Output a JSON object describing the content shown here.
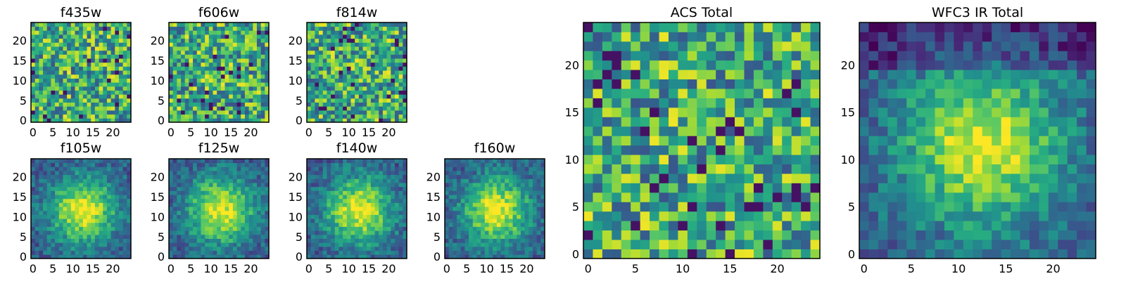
{
  "chart_data": [
    {
      "type": "heatmap",
      "title": "f435w",
      "grid_size": 25,
      "xticks": [
        "0",
        "5",
        "10",
        "15",
        "20"
      ],
      "yticks": [
        "0",
        "5",
        "10",
        "15",
        "20"
      ],
      "xlim": [
        0,
        24
      ],
      "ylim": [
        0,
        24
      ],
      "pattern": "noise",
      "colormap": "viridis"
    },
    {
      "type": "heatmap",
      "title": "f606w",
      "grid_size": 25,
      "xticks": [
        "0",
        "5",
        "10",
        "15",
        "20"
      ],
      "yticks": [
        "0",
        "5",
        "10",
        "15",
        "20"
      ],
      "xlim": [
        0,
        24
      ],
      "ylim": [
        0,
        24
      ],
      "pattern": "noise",
      "colormap": "viridis"
    },
    {
      "type": "heatmap",
      "title": "f814w",
      "grid_size": 25,
      "xticks": [
        "0",
        "5",
        "10",
        "15",
        "20"
      ],
      "yticks": [
        "0",
        "5",
        "10",
        "15",
        "20"
      ],
      "xlim": [
        0,
        24
      ],
      "ylim": [
        0,
        24
      ],
      "pattern": "noise",
      "colormap": "viridis"
    },
    {
      "type": "heatmap",
      "title": "f105w",
      "grid_size": 25,
      "xticks": [
        "0",
        "5",
        "10",
        "15",
        "20"
      ],
      "yticks": [
        "0",
        "5",
        "10",
        "15",
        "20"
      ],
      "xlim": [
        0,
        24
      ],
      "ylim": [
        0,
        24
      ],
      "pattern": "central-source",
      "colormap": "viridis"
    },
    {
      "type": "heatmap",
      "title": "f125w",
      "grid_size": 25,
      "xticks": [
        "0",
        "5",
        "10",
        "15",
        "20"
      ],
      "yticks": [
        "0",
        "5",
        "10",
        "15",
        "20"
      ],
      "xlim": [
        0,
        24
      ],
      "ylim": [
        0,
        24
      ],
      "pattern": "central-source",
      "colormap": "viridis"
    },
    {
      "type": "heatmap",
      "title": "f140w",
      "grid_size": 25,
      "xticks": [
        "0",
        "5",
        "10",
        "15",
        "20"
      ],
      "yticks": [
        "0",
        "5",
        "10",
        "15",
        "20"
      ],
      "xlim": [
        0,
        24
      ],
      "ylim": [
        0,
        24
      ],
      "pattern": "central-source",
      "colormap": "viridis"
    },
    {
      "type": "heatmap",
      "title": "f160w",
      "grid_size": 25,
      "xticks": [
        "0",
        "5",
        "10",
        "15",
        "20"
      ],
      "yticks": [
        "0",
        "5",
        "10",
        "15",
        "20"
      ],
      "xlim": [
        0,
        24
      ],
      "ylim": [
        0,
        24
      ],
      "pattern": "central-source",
      "colormap": "viridis"
    },
    {
      "type": "heatmap",
      "title": "ACS Total",
      "grid_size": 25,
      "xticks": [
        "0",
        "5",
        "10",
        "15",
        "20"
      ],
      "yticks": [
        "0",
        "5",
        "10",
        "15",
        "20"
      ],
      "xlim": [
        0,
        24
      ],
      "ylim": [
        0,
        24
      ],
      "pattern": "noise",
      "colormap": "viridis"
    },
    {
      "type": "heatmap",
      "title": "WFC3 IR Total",
      "grid_size": 25,
      "xticks": [
        "0",
        "5",
        "10",
        "15",
        "20"
      ],
      "yticks": [
        "0",
        "5",
        "10",
        "15",
        "20"
      ],
      "xlim": [
        0,
        24
      ],
      "ylim": [
        0,
        24
      ],
      "pattern": "central-source",
      "colormap": "viridis"
    }
  ]
}
